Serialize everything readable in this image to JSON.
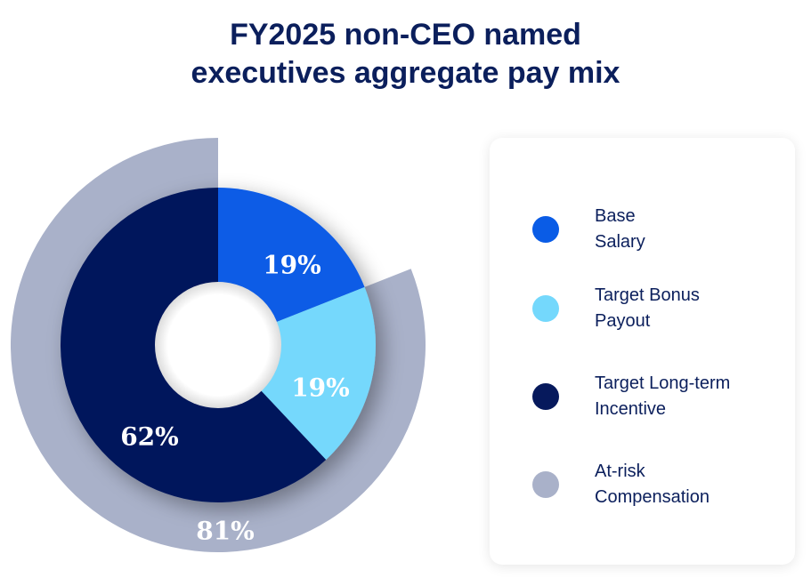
{
  "chart_data": {
    "type": "pie",
    "title": [
      "FY2025 non-CEO named",
      "executives aggregate pay mix"
    ],
    "inner_ring": [
      {
        "name": "Base Salary",
        "value": 19,
        "label": "19%",
        "color": "#0a5ce6"
      },
      {
        "name": "Target Bonus Payout",
        "value": 19,
        "label": "19%",
        "color": "#74d8fc"
      },
      {
        "name": "Target Long-term Incentive",
        "value": 62,
        "label": "62%",
        "color": "#06195c"
      }
    ],
    "outer_ring": [
      {
        "name": "At-risk Compensation",
        "value": 81,
        "label": "81%",
        "color": "#a9b1c9",
        "start_after": 19
      }
    ],
    "legend": {
      "placement": "right",
      "items": [
        {
          "line1": "Base",
          "line2": "Salary",
          "color": "#0a5ce6"
        },
        {
          "line1": "Target Bonus",
          "line2": "Payout",
          "color": "#74d8fc"
        },
        {
          "line1": "Target Long-term",
          "line2": "Incentive",
          "color": "#06195c"
        },
        {
          "line1": "At-risk",
          "line2": "Compensation",
          "color": "#a9b1c9"
        }
      ]
    }
  }
}
